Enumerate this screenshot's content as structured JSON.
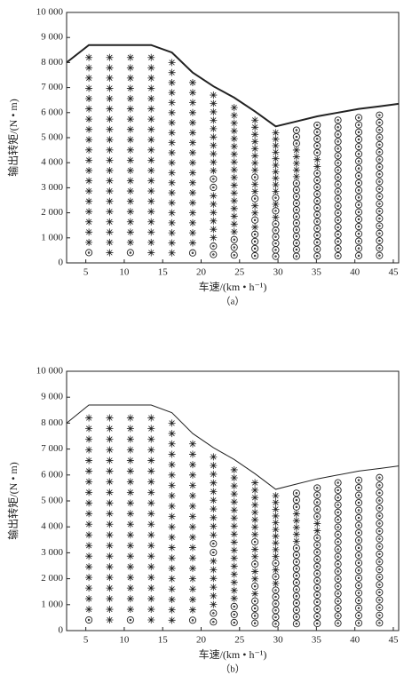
{
  "chart_data": [
    {
      "type": "scatter",
      "caption": "（a）",
      "xlabel": "车速/(km • h⁻¹)",
      "ylabel": "输出转矩/(N • m)",
      "xlim": [
        2.5,
        45.7
      ],
      "ylim": [
        0,
        10000
      ],
      "xticks": [
        5,
        10,
        15,
        20,
        25,
        30,
        35,
        40,
        45
      ],
      "yticks": [
        0,
        {
          "value": 1000,
          "label": "1 000"
        },
        {
          "value": 2000,
          "label": "2 000"
        },
        {
          "value": 3000,
          "label": "3 000"
        },
        {
          "value": 4000,
          "label": "4 000"
        },
        {
          "value": 5000,
          "label": "5 000"
        },
        {
          "value": 6000,
          "label": "6 000"
        },
        {
          "value": 7000,
          "label": "7 000"
        },
        {
          "value": 8000,
          "label": "8 000"
        },
        {
          "value": 9000,
          "label": "9 000"
        },
        {
          "value": 10000,
          "label": "10 000"
        }
      ],
      "color": "#222222",
      "line": {
        "x": [
          2.5,
          5.4,
          13.5,
          16.2,
          18.9,
          21.6,
          24.3,
          27.0,
          29.7,
          32.4,
          35.1,
          37.8,
          40.5,
          43.2,
          45.7
        ],
        "y": [
          8000,
          8700,
          8700,
          8400,
          7600,
          7050,
          6600,
          6050,
          5450,
          5650,
          5850,
          6000,
          6150,
          6250,
          6350
        ]
      },
      "columns": [
        {
          "x": 5.4,
          "circle": [
            410
          ],
          "star": [
            820,
            1230,
            1640,
            2050,
            2460,
            2870,
            3280,
            3690,
            4100,
            4510,
            4920,
            5330,
            5740,
            6150,
            6560,
            6970,
            7380,
            7790,
            8200
          ]
        },
        {
          "x": 8.1,
          "star": [
            410,
            820,
            1230,
            1640,
            2050,
            2460,
            2870,
            3280,
            3690,
            4100,
            4510,
            4920,
            5330,
            5740,
            6150,
            6560,
            6970,
            7380,
            7790,
            8200
          ]
        },
        {
          "x": 10.8,
          "circle": [
            410
          ],
          "star": [
            820,
            1230,
            1640,
            2050,
            2460,
            2870,
            3280,
            3690,
            4100,
            4510,
            4920,
            5330,
            5740,
            6150,
            6560,
            6970,
            7380,
            7790,
            8200
          ]
        },
        {
          "x": 13.5,
          "star": [
            410,
            820,
            1230,
            1640,
            2050,
            2460,
            2870,
            3280,
            3690,
            4100,
            4510,
            4920,
            5330,
            5740,
            6150,
            6560,
            6970,
            7380,
            7790,
            8200
          ]
        },
        {
          "x": 16.2,
          "star": [
            400,
            800,
            1200,
            1600,
            2000,
            2400,
            2800,
            3200,
            3600,
            4000,
            4400,
            4800,
            5200,
            5600,
            6000,
            6400,
            6800,
            7200,
            7600,
            8000
          ]
        },
        {
          "x": 18.9,
          "circle": [
            400
          ],
          "star": [
            800,
            1200,
            1600,
            2000,
            2400,
            2800,
            3200,
            3600,
            4000,
            4400,
            4800,
            5200,
            5600,
            6000,
            6400,
            6800,
            7200
          ]
        },
        {
          "x": 21.6,
          "circle": [
            335,
            670,
            3015,
            3350
          ],
          "star": [
            1005,
            1340,
            1675,
            2010,
            2345,
            2680,
            3685,
            4020,
            4355,
            4690,
            5025,
            5360,
            5695,
            6030,
            6365,
            6700
          ]
        },
        {
          "x": 24.3,
          "circle": [
            310,
            620,
            930
          ],
          "star": [
            1240,
            1550,
            1860,
            2170,
            2480,
            2790,
            3100,
            3410,
            3720,
            4030,
            4340,
            4650,
            4960,
            5270,
            5580,
            5890,
            6200
          ]
        },
        {
          "x": 27.0,
          "circle": [
            285,
            570,
            855,
            1140,
            1710,
            2565,
            3420
          ],
          "star": [
            1425,
            1995,
            2280,
            2850,
            3135,
            3705,
            3990,
            4275,
            4560,
            4845,
            5130,
            5415,
            5700
          ]
        },
        {
          "x": 29.7,
          "circle": [
            260,
            520,
            780,
            1040,
            1300,
            1560,
            2080,
            2600
          ],
          "star": [
            1820,
            2340,
            2860,
            3120,
            3380,
            3640,
            3900,
            4160,
            4420,
            4680,
            4940,
            5200
          ]
        },
        {
          "x": 32.4,
          "circle": [
            265,
            530,
            795,
            1060,
            1325,
            1590,
            1855,
            2120,
            2385,
            2650,
            2915,
            3180,
            4770,
            5035,
            5300
          ],
          "star": [
            3445,
            3710,
            3975,
            4240,
            4505
          ]
        },
        {
          "x": 35.1,
          "circle": [
            275,
            550,
            825,
            1100,
            1375,
            1650,
            1925,
            2200,
            2475,
            2750,
            3025,
            3300,
            3575,
            4400,
            4675,
            4950,
            5225,
            5500
          ],
          "star": [
            3850,
            4125
          ]
        },
        {
          "x": 37.8,
          "circle": [
            285,
            570,
            855,
            1140,
            1425,
            1710,
            1995,
            2280,
            2565,
            2850,
            3135,
            3420,
            3705,
            3990,
            4275,
            4560,
            4845,
            5130,
            5415,
            5700
          ]
        },
        {
          "x": 40.5,
          "circle": [
            290,
            580,
            870,
            1160,
            1450,
            1740,
            2030,
            2320,
            2610,
            2900,
            3190,
            3480,
            3770,
            4060,
            4350,
            4640,
            4930,
            5220,
            5510,
            5800
          ]
        },
        {
          "x": 43.2,
          "circle": [
            295,
            590,
            885,
            1180,
            1475,
            1770,
            2065,
            2360,
            2655,
            2950,
            3245,
            3540,
            3835,
            4130,
            4425,
            4720,
            5015,
            5310,
            5605,
            5900
          ]
        }
      ]
    },
    {
      "type": "scatter",
      "caption": "（b）",
      "xlabel": "车速/(km • h⁻¹)",
      "ylabel": "输出转矩/(N • m)",
      "xlim": [
        2.5,
        45.7
      ],
      "ylim": [
        0,
        10000
      ],
      "xticks": [
        5,
        10,
        15,
        20,
        25,
        30,
        35,
        40,
        45
      ],
      "yticks": [
        0,
        {
          "value": 1000,
          "label": "1 000"
        },
        {
          "value": 2000,
          "label": "2 000"
        },
        {
          "value": 3000,
          "label": "3 000"
        },
        {
          "value": 4000,
          "label": "4 000"
        },
        {
          "value": 5000,
          "label": "5 000"
        },
        {
          "value": 6000,
          "label": "6 000"
        },
        {
          "value": 7000,
          "label": "7 000"
        },
        {
          "value": 8000,
          "label": "8 000"
        },
        {
          "value": 9000,
          "label": "9 000"
        },
        {
          "value": 10000,
          "label": "10 000"
        }
      ],
      "color": "#222222",
      "line": {
        "x": [
          2.5,
          5.4,
          13.5,
          16.2,
          18.9,
          21.6,
          24.3,
          27.0,
          29.7,
          32.4,
          35.1,
          37.8,
          40.5,
          43.2,
          45.7
        ],
        "y": [
          8000,
          8700,
          8700,
          8400,
          7600,
          7050,
          6600,
          6050,
          5450,
          5650,
          5850,
          6000,
          6150,
          6250,
          6350
        ]
      },
      "columns": [
        {
          "x": 5.4,
          "circle": [
            410
          ],
          "star": [
            820,
            1230,
            1640,
            2050,
            2460,
            2870,
            3280,
            3690,
            4100,
            4510,
            4920,
            5330,
            5740,
            6150,
            6560,
            6970,
            7380,
            7790,
            8200
          ]
        },
        {
          "x": 8.1,
          "star": [
            410,
            820,
            1230,
            1640,
            2050,
            2460,
            2870,
            3280,
            3690,
            4100,
            4510,
            4920,
            5330,
            5740,
            6150,
            6560,
            6970,
            7380,
            7790,
            8200
          ]
        },
        {
          "x": 10.8,
          "circle": [
            410
          ],
          "star": [
            820,
            1230,
            1640,
            2050,
            2460,
            2870,
            3280,
            3690,
            4100,
            4510,
            4920,
            5330,
            5740,
            6150,
            6560,
            6970,
            7380,
            7790,
            8200
          ]
        },
        {
          "x": 13.5,
          "star": [
            410,
            820,
            1230,
            1640,
            2050,
            2460,
            2870,
            3280,
            3690,
            4100,
            4510,
            4920,
            5330,
            5740,
            6150,
            6560,
            6970,
            7380,
            7790,
            8200
          ]
        },
        {
          "x": 16.2,
          "star": [
            400,
            800,
            1200,
            1600,
            2000,
            2400,
            2800,
            3200,
            3600,
            4000,
            4400,
            4800,
            5200,
            5600,
            6000,
            6400,
            6800,
            7200,
            7600,
            8000
          ]
        },
        {
          "x": 18.9,
          "circle": [
            400
          ],
          "star": [
            800,
            1200,
            1600,
            2000,
            2400,
            2800,
            3200,
            3600,
            4000,
            4400,
            4800,
            5200,
            5600,
            6000,
            6400,
            6800,
            7200
          ]
        },
        {
          "x": 21.6,
          "circle": [
            335,
            670,
            3015,
            3350
          ],
          "star": [
            1005,
            1340,
            1675,
            2010,
            2345,
            2680,
            3685,
            4020,
            4355,
            4690,
            5025,
            5360,
            5695,
            6030,
            6365,
            6700
          ]
        },
        {
          "x": 24.3,
          "circle": [
            310,
            620,
            930
          ],
          "star": [
            1240,
            1550,
            1860,
            2170,
            2480,
            2790,
            3100,
            3410,
            3720,
            4030,
            4340,
            4650,
            4960,
            5270,
            5580,
            5890,
            6200
          ]
        },
        {
          "x": 27.0,
          "circle": [
            285,
            570,
            855,
            1140,
            1710,
            2565,
            3420
          ],
          "star": [
            1425,
            1995,
            2280,
            2850,
            3135,
            3705,
            3990,
            4275,
            4560,
            4845,
            5130,
            5415,
            5700
          ]
        },
        {
          "x": 29.7,
          "circle": [
            260,
            520,
            780,
            1040,
            1300,
            1560,
            2080,
            2600
          ],
          "star": [
            1820,
            2340,
            2860,
            3120,
            3380,
            3640,
            3900,
            4160,
            4420,
            4680,
            4940,
            5200
          ]
        },
        {
          "x": 32.4,
          "circle": [
            265,
            530,
            795,
            1060,
            1325,
            1590,
            1855,
            2120,
            2385,
            2650,
            2915,
            3180,
            4770,
            5035,
            5300
          ],
          "star": [
            3445,
            3710,
            3975,
            4240,
            4505
          ]
        },
        {
          "x": 35.1,
          "circle": [
            275,
            550,
            825,
            1100,
            1375,
            1650,
            1925,
            2200,
            2475,
            2750,
            3025,
            3300,
            3575,
            4400,
            4675,
            4950,
            5225,
            5500
          ],
          "star": [
            3850,
            4125
          ]
        },
        {
          "x": 37.8,
          "circle": [
            285,
            570,
            855,
            1140,
            1425,
            1710,
            1995,
            2280,
            2565,
            2850,
            3135,
            3420,
            3705,
            3990,
            4275,
            4560,
            4845,
            5130,
            5415,
            5700
          ]
        },
        {
          "x": 40.5,
          "circle": [
            290,
            580,
            870,
            1160,
            1450,
            1740,
            2030,
            2320,
            2610,
            2900,
            3190,
            3480,
            3770,
            4060,
            4350,
            4640,
            4930,
            5220,
            5510,
            5800
          ]
        },
        {
          "x": 43.2,
          "circle": [
            295,
            590,
            885,
            1180,
            1475,
            1770,
            2065,
            2360,
            2655,
            2950,
            3245,
            3540,
            3835,
            4130,
            4425,
            4720,
            5015,
            5310,
            5605,
            5900
          ]
        }
      ]
    }
  ]
}
